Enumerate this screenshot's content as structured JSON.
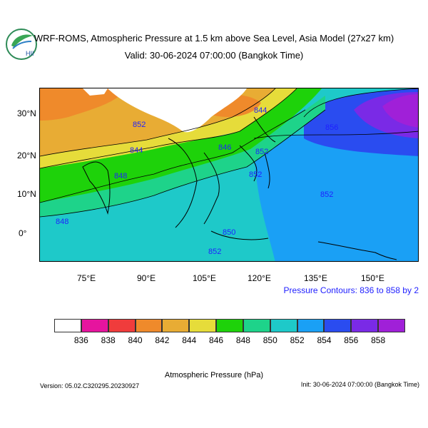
{
  "header": {
    "title": "WRF-ROMS, Atmospheric Pressure at 1.5 km above Sea Level, Asia Model (27x27 km)",
    "valid": "Valid: 30-06-2024 07:00:00 (Bangkok Time)"
  },
  "logo": {
    "text": "HII",
    "icon": "hii-leaf-logo"
  },
  "map": {
    "lat_labels": [
      "30°N",
      "20°N",
      "10°N",
      "0°"
    ],
    "lon_labels": [
      "75°E",
      "90°E",
      "105°E",
      "120°E",
      "135°E",
      "150°E"
    ],
    "contour_labels": [
      "844",
      "844",
      "846",
      "848",
      "848",
      "850",
      "852",
      "852",
      "852",
      "852",
      "852",
      "856"
    ],
    "contour_caption": "Pressure Contours: 836 to 858 by 2"
  },
  "colorbar": {
    "levels": [
      "836",
      "838",
      "840",
      "842",
      "844",
      "846",
      "848",
      "850",
      "852",
      "854",
      "856",
      "858"
    ],
    "colors": [
      "#ffffff",
      "#e6149e",
      "#f03c3c",
      "#ef8a2b",
      "#e8ac34",
      "#e6dc3a",
      "#1ed20a",
      "#1ed38a",
      "#1ec9c9",
      "#1aa0f5",
      "#2a4cf0",
      "#7a2ae6",
      "#a020d8"
    ],
    "title": "Atmospheric Pressure (hPa)"
  },
  "footer": {
    "version": "Version: 05.02.C320295.20230927",
    "init": "Init: 30-06-2024 07:00:00 (Bangkok Time)"
  }
}
